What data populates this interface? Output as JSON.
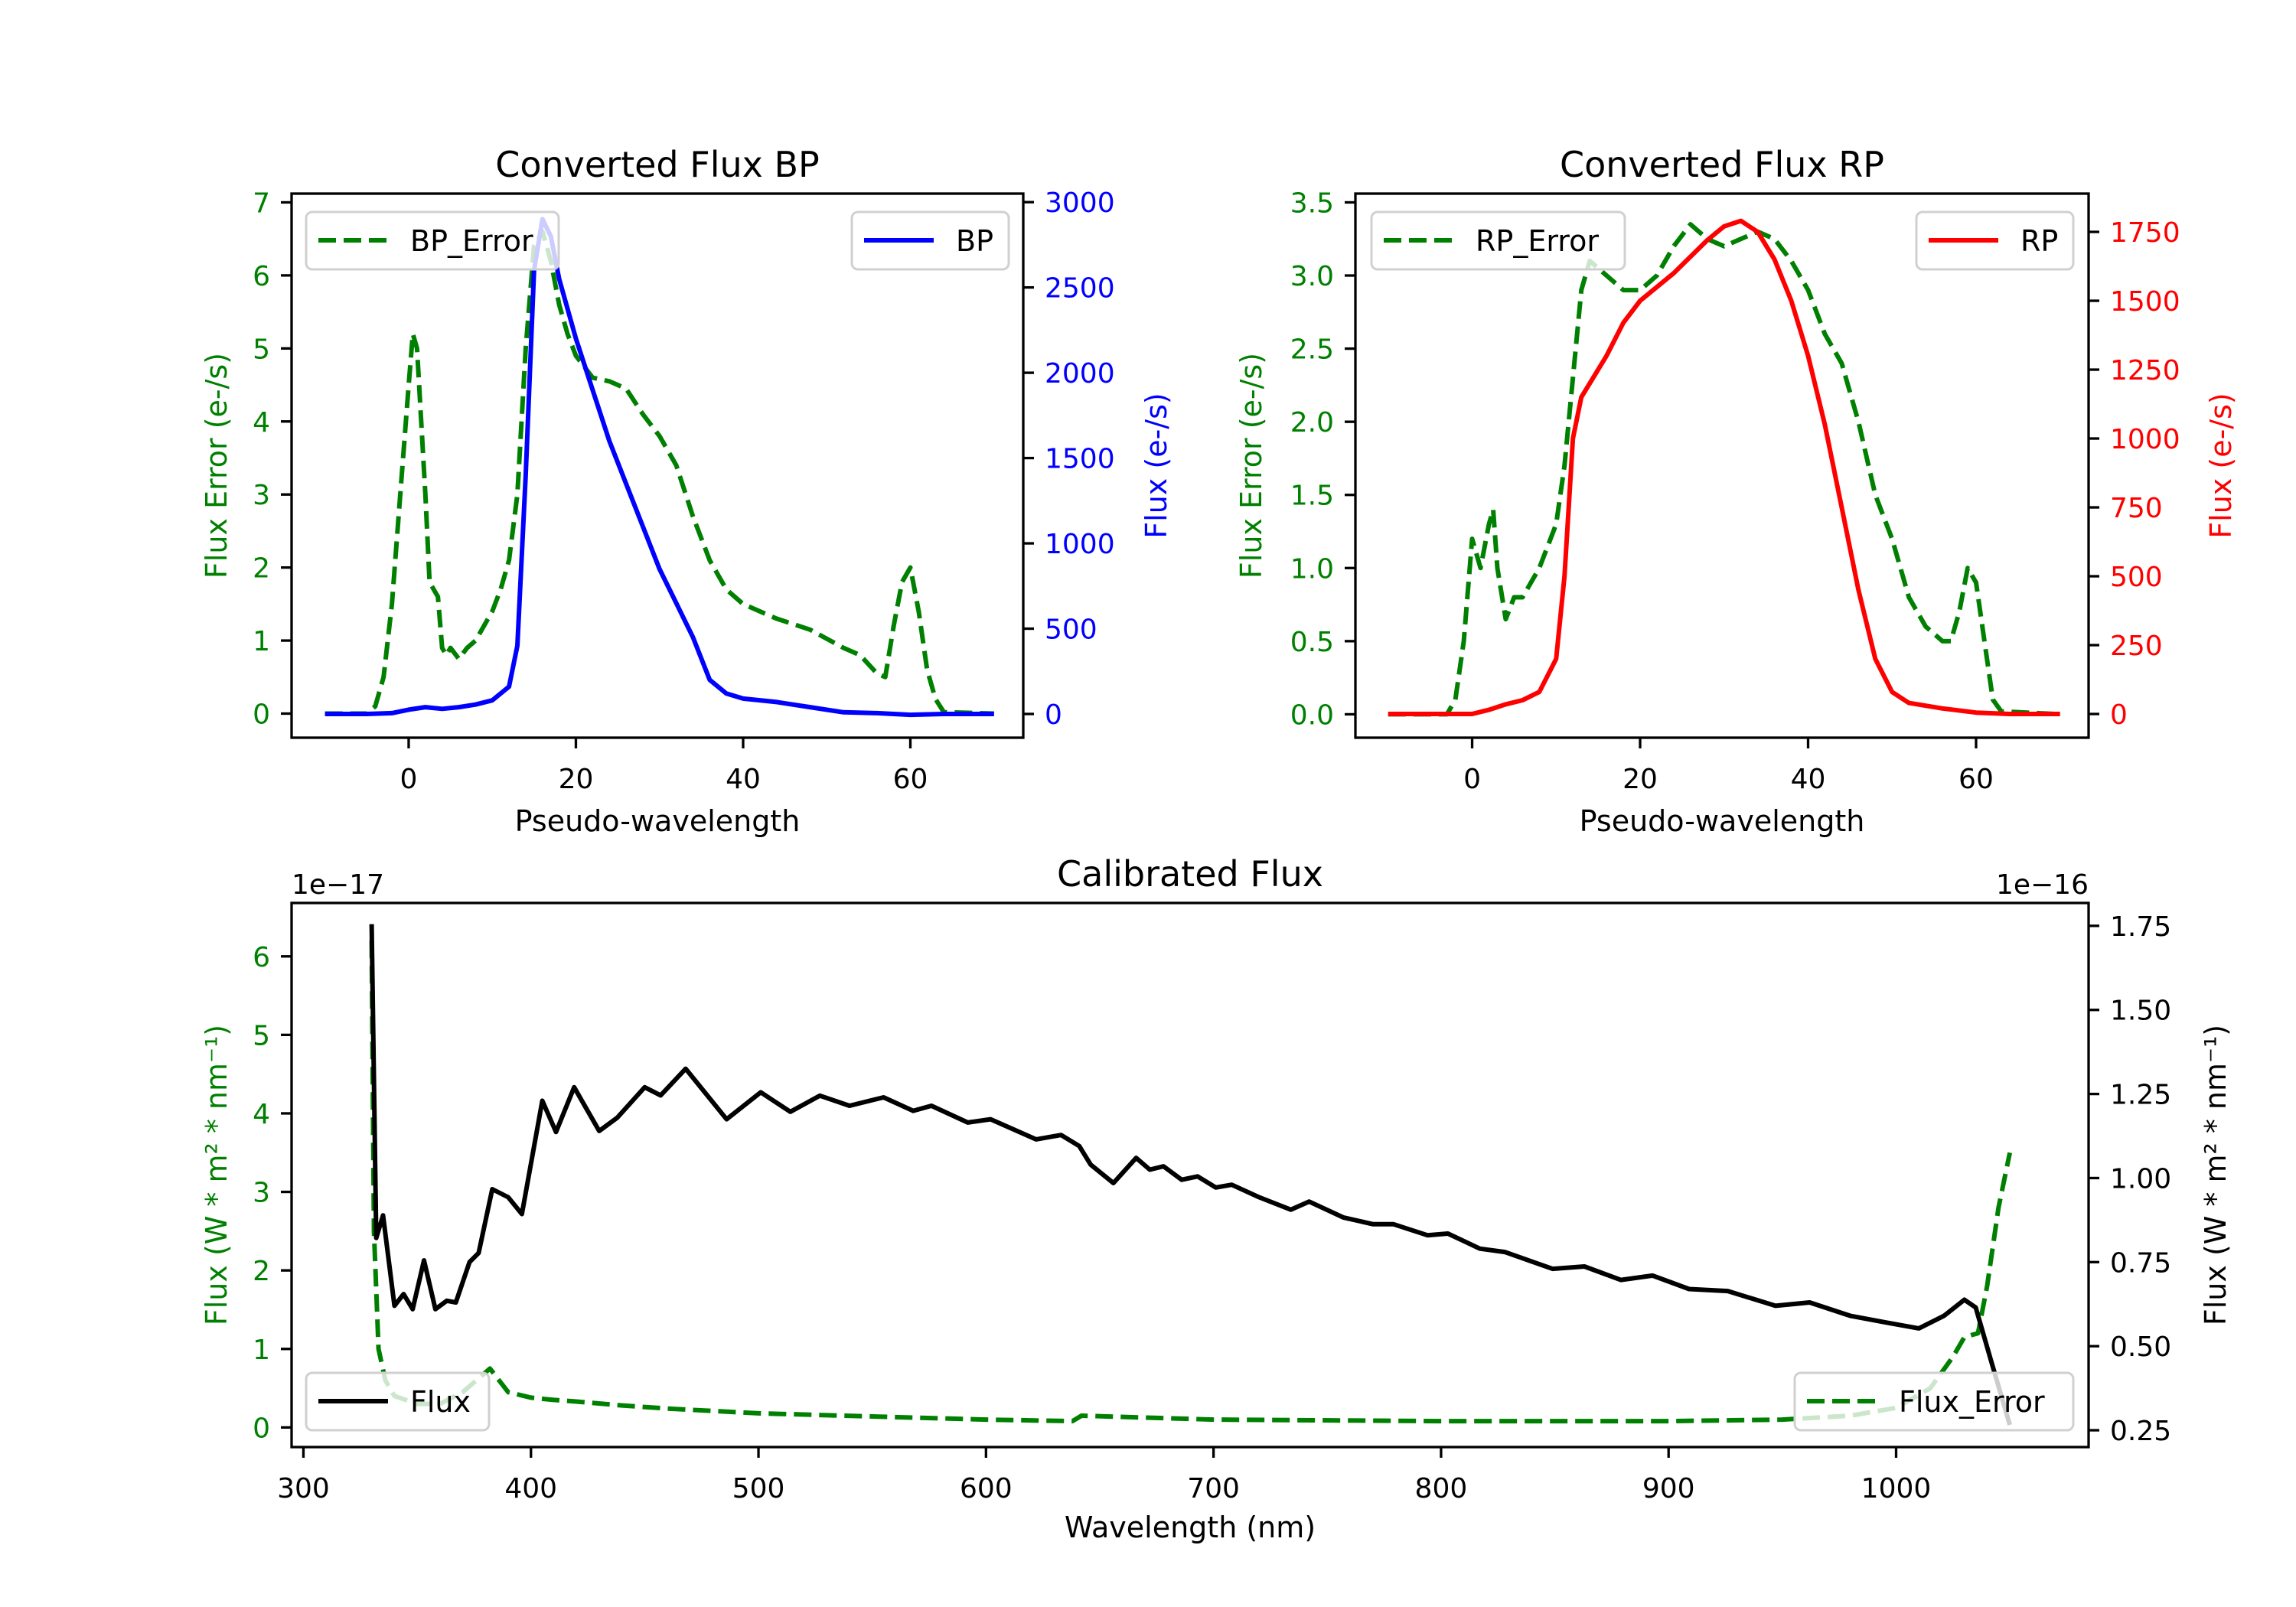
{
  "chart_data": [
    {
      "type": "line",
      "title": "Converted Flux BP",
      "xlabel": "Pseudo-wavelength",
      "ylabel_left": "Flux Error (e-/s)",
      "ylabel_right": "Flux (e-/s)",
      "colors": {
        "left": "#008000",
        "right": "#0000ff"
      },
      "xlim": [
        -14,
        73.5
      ],
      "ylim_left": [
        -0.33,
        7.12
      ],
      "ylim_right": [
        -139,
        3050
      ],
      "xticks": [
        {
          "v": 0,
          "label": "0"
        },
        {
          "v": 20,
          "label": "20"
        },
        {
          "v": 40,
          "label": "40"
        },
        {
          "v": 60,
          "label": "60"
        }
      ],
      "yticks_left": [
        {
          "v": 0,
          "label": "0"
        },
        {
          "v": 1,
          "label": "1"
        },
        {
          "v": 2,
          "label": "2"
        },
        {
          "v": 3,
          "label": "3"
        },
        {
          "v": 4,
          "label": "4"
        },
        {
          "v": 5,
          "label": "5"
        },
        {
          "v": 6,
          "label": "6"
        },
        {
          "v": 7,
          "label": "7"
        }
      ],
      "yticks_right": [
        {
          "v": 0,
          "label": "0"
        },
        {
          "v": 500,
          "label": "500"
        },
        {
          "v": 1000,
          "label": "1000"
        },
        {
          "v": 1500,
          "label": "1500"
        },
        {
          "v": 2000,
          "label": "2000"
        },
        {
          "v": 2500,
          "label": "2500"
        },
        {
          "v": 3000,
          "label": "3000"
        }
      ],
      "series": [
        {
          "name": "BP_Error",
          "axis": "left",
          "style": "dashed",
          "color": "#008000",
          "legend": "upper-left",
          "x": [
            -10,
            -5,
            -4,
            -3,
            -2,
            -1,
            0,
            0.5,
            1,
            2,
            2.5,
            3,
            3.5,
            4,
            4.5,
            5,
            6,
            7,
            8,
            9,
            10,
            11,
            12,
            13,
            14,
            15,
            16,
            17,
            18,
            19,
            20,
            22,
            24,
            26,
            28,
            30,
            32,
            34,
            36,
            38,
            40,
            44,
            48,
            52,
            54,
            56,
            57,
            58,
            59,
            60,
            61,
            62,
            63,
            64,
            70
          ],
          "y": [
            0,
            0,
            0.1,
            0.5,
            1.5,
            3,
            4.5,
            5.2,
            5.0,
            3.0,
            1.8,
            1.7,
            1.6,
            0.9,
            0.8,
            0.9,
            0.75,
            0.9,
            1.0,
            1.2,
            1.4,
            1.7,
            2.1,
            3.0,
            5.0,
            6.4,
            6.6,
            6.2,
            5.6,
            5.2,
            4.9,
            4.6,
            4.55,
            4.45,
            4.1,
            3.8,
            3.4,
            2.7,
            2.1,
            1.7,
            1.5,
            1.3,
            1.15,
            0.9,
            0.8,
            0.55,
            0.5,
            1.2,
            1.8,
            2.0,
            1.4,
            0.6,
            0.2,
            0.02,
            0
          ]
        },
        {
          "name": "BP",
          "axis": "right",
          "style": "solid",
          "color": "#0000ff",
          "legend": "upper-right",
          "x": [
            -10,
            -5,
            -2,
            0,
            2,
            4,
            6,
            8,
            10,
            12,
            13,
            14,
            15,
            16,
            17,
            18,
            20,
            22,
            24,
            26,
            28,
            30,
            32,
            34,
            36,
            38,
            40,
            44,
            48,
            52,
            56,
            60,
            64,
            70
          ],
          "y": [
            0,
            0,
            5,
            25,
            40,
            30,
            40,
            55,
            80,
            160,
            400,
            1400,
            2600,
            2900,
            2800,
            2550,
            2200,
            1900,
            1600,
            1350,
            1100,
            850,
            650,
            450,
            200,
            120,
            90,
            70,
            40,
            10,
            5,
            -5,
            0,
            0
          ]
        }
      ]
    },
    {
      "type": "line",
      "title": "Converted Flux RP",
      "xlabel": "Pseudo-wavelength",
      "ylabel_left": "Flux Error (e-/s)",
      "ylabel_right": "Flux (e-/s)",
      "colors": {
        "left": "#008000",
        "right": "#ff0000"
      },
      "xlim": [
        -13.9,
        73.4
      ],
      "ylim_left": [
        -0.16,
        3.56
      ],
      "ylim_right": [
        -86,
        1889
      ],
      "xticks": [
        {
          "v": 0,
          "label": "0"
        },
        {
          "v": 20,
          "label": "20"
        },
        {
          "v": 40,
          "label": "40"
        },
        {
          "v": 60,
          "label": "60"
        }
      ],
      "yticks_left": [
        {
          "v": 0,
          "label": "0.0"
        },
        {
          "v": 0.5,
          "label": "0.5"
        },
        {
          "v": 1,
          "label": "1.0"
        },
        {
          "v": 1.5,
          "label": "1.5"
        },
        {
          "v": 2,
          "label": "2.0"
        },
        {
          "v": 2.5,
          "label": "2.5"
        },
        {
          "v": 3,
          "label": "3.0"
        },
        {
          "v": 3.5,
          "label": "3.5"
        }
      ],
      "yticks_right": [
        {
          "v": 0,
          "label": "0"
        },
        {
          "v": 250,
          "label": "250"
        },
        {
          "v": 500,
          "label": "500"
        },
        {
          "v": 750,
          "label": "750"
        },
        {
          "v": 1000,
          "label": "1000"
        },
        {
          "v": 1250,
          "label": "1250"
        },
        {
          "v": 1500,
          "label": "1500"
        },
        {
          "v": 1750,
          "label": "1750"
        }
      ],
      "series": [
        {
          "name": "RP_Error",
          "axis": "left",
          "style": "dashed",
          "color": "#008000",
          "legend": "upper-left",
          "x": [
            -10,
            -3,
            -2,
            -1,
            0,
            0.5,
            1,
            2,
            2.5,
            3,
            4,
            5,
            6,
            7,
            8,
            10,
            11,
            12,
            13,
            14,
            15,
            16,
            18,
            20,
            22,
            24,
            26,
            28,
            30,
            32,
            34,
            36,
            38,
            40,
            42,
            44,
            46,
            48,
            50,
            52,
            54,
            56,
            57,
            58,
            59,
            60,
            61,
            62,
            63,
            70
          ],
          "y": [
            0,
            0,
            0.1,
            0.5,
            1.2,
            1.1,
            1.0,
            1.3,
            1.4,
            1.0,
            0.65,
            0.8,
            0.8,
            0.9,
            1.0,
            1.3,
            1.7,
            2.3,
            2.9,
            3.1,
            3.05,
            3.0,
            2.9,
            2.9,
            3.0,
            3.2,
            3.35,
            3.25,
            3.2,
            3.25,
            3.3,
            3.25,
            3.1,
            2.9,
            2.6,
            2.4,
            2.0,
            1.5,
            1.2,
            0.8,
            0.6,
            0.5,
            0.5,
            0.7,
            1.0,
            0.9,
            0.5,
            0.1,
            0.02,
            0
          ]
        },
        {
          "name": "RP",
          "axis": "right",
          "style": "solid",
          "color": "#ff0000",
          "legend": "upper-right",
          "x": [
            -10,
            -3,
            0,
            2,
            4,
            6,
            8,
            10,
            11,
            12,
            13,
            14,
            16,
            18,
            20,
            24,
            28,
            30,
            32,
            34,
            36,
            38,
            40,
            42,
            44,
            46,
            48,
            50,
            52,
            56,
            60,
            64,
            70
          ],
          "y": [
            0,
            0,
            0,
            15,
            35,
            50,
            80,
            200,
            500,
            1000,
            1150,
            1200,
            1300,
            1420,
            1500,
            1600,
            1720,
            1770,
            1790,
            1750,
            1650,
            1500,
            1300,
            1050,
            750,
            450,
            200,
            80,
            40,
            20,
            5,
            0,
            0
          ]
        }
      ]
    },
    {
      "type": "line",
      "title": "Calibrated Flux",
      "xlabel": "Wavelength (nm)",
      "ylabel_left": "Flux (W * m² * nm⁻¹)",
      "ylabel_right": "Flux (W * m² * nm⁻¹)",
      "offset_left": "1e−17",
      "offset_right": "1e−16",
      "colors": {
        "left": "#008000",
        "right": "#000000"
      },
      "xlim": [
        294.8,
        1084.6
      ],
      "ylim_left": [
        -0.25,
        6.68
      ],
      "ylim_right": [
        0.2,
        1.818
      ],
      "xticks": [
        {
          "v": 300,
          "label": "300"
        },
        {
          "v": 400,
          "label": "400"
        },
        {
          "v": 500,
          "label": "500"
        },
        {
          "v": 600,
          "label": "600"
        },
        {
          "v": 700,
          "label": "700"
        },
        {
          "v": 800,
          "label": "800"
        },
        {
          "v": 900,
          "label": "900"
        },
        {
          "v": 1000,
          "label": "1000"
        }
      ],
      "yticks_left": [
        {
          "v": 0,
          "label": "0"
        },
        {
          "v": 1,
          "label": "1"
        },
        {
          "v": 2,
          "label": "2"
        },
        {
          "v": 3,
          "label": "3"
        },
        {
          "v": 4,
          "label": "4"
        },
        {
          "v": 5,
          "label": "5"
        },
        {
          "v": 6,
          "label": "6"
        }
      ],
      "yticks_right": [
        {
          "v": 0.25,
          "label": "0.25"
        },
        {
          "v": 0.5,
          "label": "0.50"
        },
        {
          "v": 0.75,
          "label": "0.75"
        },
        {
          "v": 1.0,
          "label": "1.00"
        },
        {
          "v": 1.25,
          "label": "1.25"
        },
        {
          "v": 1.5,
          "label": "1.50"
        },
        {
          "v": 1.75,
          "label": "1.75"
        }
      ],
      "series": [
        {
          "name": "Flux_Error",
          "axis": "left",
          "style": "dashed",
          "color": "#008000",
          "legend": "lower-right",
          "x": [
            330,
            331,
            333,
            336,
            340,
            350,
            360,
            370,
            378,
            382,
            386,
            390,
            400,
            410,
            420,
            440,
            460,
            500,
            550,
            600,
            638,
            642,
            700,
            800,
            900,
            950,
            980,
            1000,
            1015,
            1025,
            1030,
            1036,
            1040,
            1045,
            1050
          ],
          "y": [
            6.2,
            2.5,
            1.0,
            0.6,
            0.4,
            0.3,
            0.3,
            0.45,
            0.65,
            0.75,
            0.6,
            0.45,
            0.38,
            0.35,
            0.33,
            0.28,
            0.24,
            0.18,
            0.14,
            0.1,
            0.08,
            0.15,
            0.1,
            0.08,
            0.08,
            0.1,
            0.15,
            0.25,
            0.5,
            0.9,
            1.15,
            1.2,
            1.8,
            2.8,
            3.5
          ]
        },
        {
          "name": "Flux",
          "axis": "right",
          "style": "solid",
          "color": "#000000",
          "legend": "lower-left",
          "x": [
            330,
            332,
            335,
            340,
            344,
            348,
            353,
            358,
            363,
            367,
            373,
            377,
            383,
            390,
            396,
            405,
            411,
            419,
            430,
            438,
            450,
            457,
            468,
            486,
            501,
            514,
            527,
            540,
            555,
            568,
            576,
            592,
            602,
            622,
            633,
            641,
            646,
            656,
            666,
            672,
            678,
            686,
            693,
            701,
            708,
            720,
            734,
            742,
            757,
            770,
            779,
            794,
            803,
            817,
            828,
            849,
            863,
            879,
            893,
            909,
            926,
            947,
            962,
            980,
            996,
            1010,
            1021,
            1030,
            1035,
            1042,
            1050
          ],
          "y": [
            1.755,
            0.822,
            0.889,
            0.62,
            0.655,
            0.61,
            0.755,
            0.61,
            0.635,
            0.63,
            0.75,
            0.777,
            0.967,
            0.943,
            0.893,
            1.23,
            1.137,
            1.27,
            1.14,
            1.18,
            1.27,
            1.246,
            1.325,
            1.175,
            1.255,
            1.197,
            1.245,
            1.215,
            1.24,
            1.2,
            1.215,
            1.165,
            1.175,
            1.115,
            1.128,
            1.095,
            1.04,
            0.985,
            1.06,
            1.025,
            1.035,
            0.995,
            1.005,
            0.972,
            0.98,
            0.943,
            0.906,
            0.93,
            0.883,
            0.863,
            0.863,
            0.83,
            0.835,
            0.79,
            0.78,
            0.73,
            0.737,
            0.697,
            0.71,
            0.67,
            0.664,
            0.62,
            0.63,
            0.59,
            0.57,
            0.553,
            0.59,
            0.638,
            0.615,
            0.45,
            0.266
          ]
        }
      ]
    }
  ]
}
